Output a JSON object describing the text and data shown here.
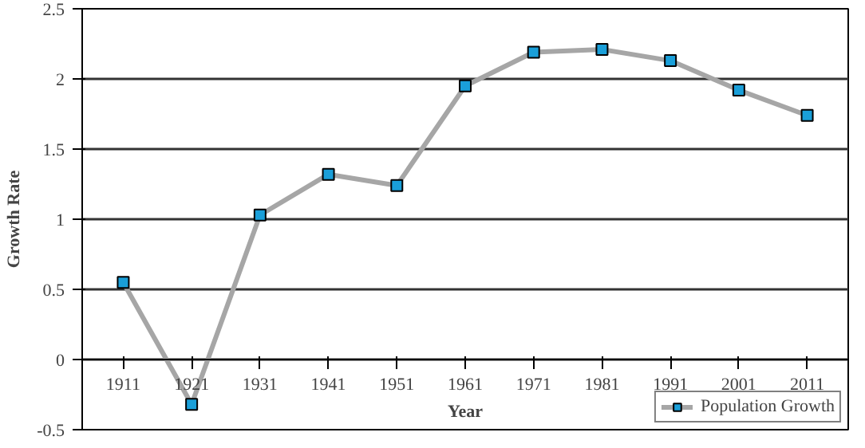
{
  "chart_data": {
    "type": "line",
    "xlabel": "Year",
    "ylabel": "Growth Rate",
    "categories": [
      "1911",
      "1921",
      "1931",
      "1941",
      "1951",
      "1961",
      "1971",
      "1981",
      "1991",
      "2001",
      "2011"
    ],
    "series": [
      {
        "name": "Population Growth",
        "color": "#1a9fd9",
        "values": [
          0.55,
          -0.32,
          1.03,
          1.32,
          1.24,
          1.95,
          2.19,
          2.21,
          2.13,
          1.92,
          1.74
        ]
      }
    ],
    "ylim": [
      -0.5,
      2.5
    ],
    "yticks": [
      -0.5,
      0,
      0.5,
      1,
      1.5,
      2,
      2.5
    ],
    "grid": "y",
    "legend": "bottom",
    "marker": "square",
    "line_style": "solid"
  }
}
